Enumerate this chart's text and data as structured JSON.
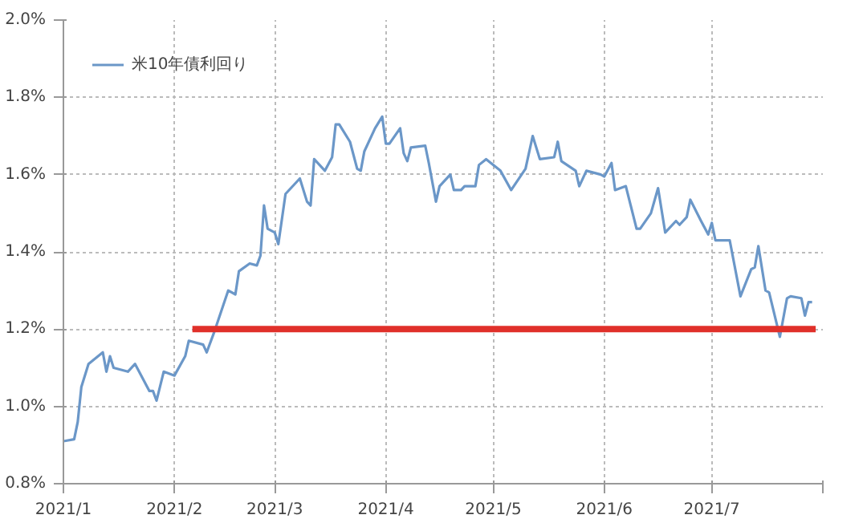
{
  "chart_data": {
    "type": "line",
    "xlim": [
      "2021-01-01",
      "2021-08-01"
    ],
    "xticks": [
      {
        "value": "2021-01-01",
        "label": "2021/1"
      },
      {
        "value": "2021-02-01",
        "label": "2021/2"
      },
      {
        "value": "2021-03-01",
        "label": "2021/3"
      },
      {
        "value": "2021-04-01",
        "label": "2021/4"
      },
      {
        "value": "2021-05-01",
        "label": "2021/5"
      },
      {
        "value": "2021-06-01",
        "label": "2021/6"
      },
      {
        "value": "2021-07-01",
        "label": "2021/7"
      },
      {
        "value": "2021-08-01",
        "label": null
      }
    ],
    "ylim": [
      0.8,
      2.0
    ],
    "yticks": [
      {
        "value": 0.8,
        "label": "0.8%"
      },
      {
        "value": 1.0,
        "label": "1.0%"
      },
      {
        "value": 1.2,
        "label": "1.2%"
      },
      {
        "value": 1.4,
        "label": "1.4%"
      },
      {
        "value": 1.6,
        "label": "1.6%"
      },
      {
        "value": 1.8,
        "label": "1.8%"
      },
      {
        "value": 2.0,
        "label": "2.0%"
      }
    ],
    "grid": true,
    "legend": "top left",
    "line_style": "solid",
    "marker": "none",
    "series": [
      {
        "name": "米10年債利回り",
        "color": "#6b97c8",
        "x": [
          "2021-01-01",
          "2021-01-04",
          "2021-01-05",
          "2021-01-06",
          "2021-01-08",
          "2021-01-12",
          "2021-01-13",
          "2021-01-14",
          "2021-01-15",
          "2021-01-19",
          "2021-01-21",
          "2021-01-25",
          "2021-01-26",
          "2021-01-27",
          "2021-01-29",
          "2021-02-01",
          "2021-02-04",
          "2021-02-05",
          "2021-02-09",
          "2021-02-10",
          "2021-02-12",
          "2021-02-16",
          "2021-02-18",
          "2021-02-19",
          "2021-02-22",
          "2021-02-24",
          "2021-02-25",
          "2021-02-26",
          "2021-02-27",
          "2021-03-01",
          "2021-03-02",
          "2021-03-04",
          "2021-03-08",
          "2021-03-10",
          "2021-03-11",
          "2021-03-12",
          "2021-03-15",
          "2021-03-17",
          "2021-03-18",
          "2021-03-19",
          "2021-03-22",
          "2021-03-24",
          "2021-03-25",
          "2021-03-26",
          "2021-03-29",
          "2021-03-31",
          "2021-04-01",
          "2021-04-02",
          "2021-04-05",
          "2021-04-06",
          "2021-04-07",
          "2021-04-08",
          "2021-04-12",
          "2021-04-13",
          "2021-04-15",
          "2021-04-16",
          "2021-04-19",
          "2021-04-20",
          "2021-04-22",
          "2021-04-23",
          "2021-04-26",
          "2021-04-27",
          "2021-04-29",
          "2021-05-03",
          "2021-05-06",
          "2021-05-10",
          "2021-05-12",
          "2021-05-14",
          "2021-05-18",
          "2021-05-19",
          "2021-05-20",
          "2021-05-24",
          "2021-05-25",
          "2021-05-27",
          "2021-05-31",
          "2021-06-01",
          "2021-06-03",
          "2021-06-04",
          "2021-06-07",
          "2021-06-10",
          "2021-06-11",
          "2021-06-14",
          "2021-06-16",
          "2021-06-18",
          "2021-06-21",
          "2021-06-22",
          "2021-06-24",
          "2021-06-25",
          "2021-06-28",
          "2021-06-30",
          "2021-07-01",
          "2021-07-02",
          "2021-07-06",
          "2021-07-09",
          "2021-07-12",
          "2021-07-13",
          "2021-07-14",
          "2021-07-16",
          "2021-07-17",
          "2021-07-20",
          "2021-07-22",
          "2021-07-23",
          "2021-07-26",
          "2021-07-27",
          "2021-07-28",
          "2021-07-29"
        ],
        "values": [
          0.91,
          0.915,
          0.96,
          1.05,
          1.11,
          1.14,
          1.09,
          1.13,
          1.1,
          1.09,
          1.11,
          1.04,
          1.04,
          1.015,
          1.09,
          1.08,
          1.13,
          1.17,
          1.16,
          1.14,
          1.19,
          1.3,
          1.29,
          1.35,
          1.37,
          1.365,
          1.39,
          1.52,
          1.46,
          1.45,
          1.42,
          1.55,
          1.59,
          1.53,
          1.52,
          1.64,
          1.61,
          1.645,
          1.73,
          1.73,
          1.685,
          1.615,
          1.61,
          1.66,
          1.72,
          1.75,
          1.68,
          1.68,
          1.72,
          1.655,
          1.635,
          1.67,
          1.675,
          1.63,
          1.53,
          1.57,
          1.6,
          1.56,
          1.56,
          1.57,
          1.57,
          1.625,
          1.64,
          1.61,
          1.56,
          1.615,
          1.7,
          1.64,
          1.645,
          1.685,
          1.635,
          1.61,
          1.57,
          1.61,
          1.6,
          1.595,
          1.63,
          1.56,
          1.57,
          1.46,
          1.46,
          1.5,
          1.565,
          1.45,
          1.48,
          1.47,
          1.49,
          1.535,
          1.48,
          1.445,
          1.475,
          1.43,
          1.43,
          1.285,
          1.355,
          1.36,
          1.415,
          1.3,
          1.295,
          1.18,
          1.28,
          1.285,
          1.28,
          1.235,
          1.27,
          1.27
        ]
      },
      {
        "color": "#e0302a",
        "x": [
          "2021-02-06",
          "2021-07-30"
        ],
        "values": [
          1.2,
          1.2
        ]
      }
    ]
  }
}
